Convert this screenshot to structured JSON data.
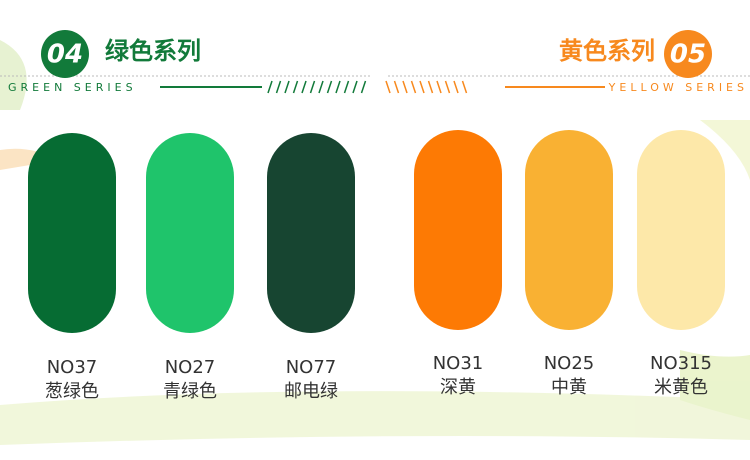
{
  "sections": [
    {
      "number": "04",
      "title": "绿色系列",
      "subtitle": "GREEN SERIES",
      "color": "#127a3a",
      "swatches": [
        {
          "code": "NO37",
          "name": "葱绿色",
          "color": "#066c33"
        },
        {
          "code": "NO27",
          "name": "青绿色",
          "color": "#1fc46b"
        },
        {
          "code": "NO77",
          "name": "邮电绿",
          "color": "#174531"
        }
      ]
    },
    {
      "number": "05",
      "title": "黄色系列",
      "subtitle": "YELLOW SERIES",
      "color": "#f7891e",
      "swatches": [
        {
          "code": "NO31",
          "name": "深黄",
          "color": "#fd7a04"
        },
        {
          "code": "NO25",
          "name": "中黄",
          "color": "#f9b133"
        },
        {
          "code": "NO315",
          "name": "米黄色",
          "color": "#fde8a9"
        }
      ]
    }
  ]
}
